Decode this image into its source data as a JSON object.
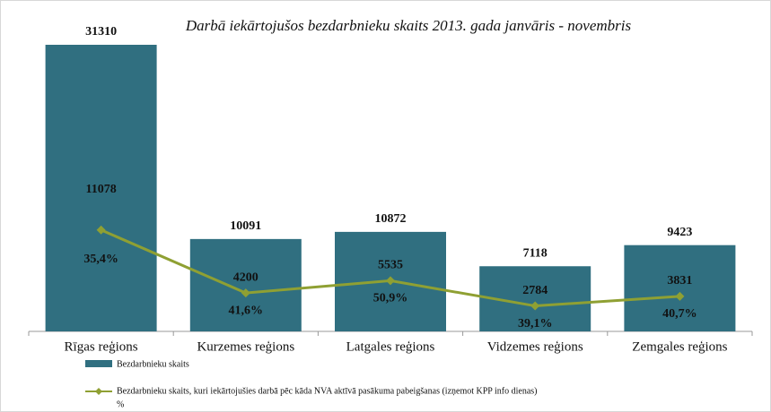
{
  "chart_data": {
    "type": "bar_line",
    "title": "Darbā iekārtojušos bezdarbnieku skaits 2013. gada janvāris - novembris",
    "categories": [
      "Rīgas reģions",
      "Kurzemes reģions",
      "Latgales reģions",
      "Vidzemes reģions",
      "Zemgales reģions"
    ],
    "series": [
      {
        "name": "Bezdarbnieku skaits",
        "type": "bar",
        "color": "#306f80",
        "values": [
          31310,
          10091,
          10872,
          7118,
          9423
        ]
      },
      {
        "name": "Bezdarbnieku skaits, kuri  iekārtojušies darbā pēc kāda NVA aktīvā pasākuma pabeigšanas (izņemot KPP info dienas)",
        "type": "line",
        "color": "#8fa033",
        "values": [
          11078,
          4200,
          5535,
          2784,
          3831
        ]
      },
      {
        "name": "%",
        "type": "label",
        "values": [
          35.4,
          41.6,
          50.9,
          39.1,
          40.7
        ],
        "value_labels": [
          "35,4%",
          "41,6%",
          "50,9%",
          "39,1%",
          "40,7%"
        ]
      }
    ]
  }
}
